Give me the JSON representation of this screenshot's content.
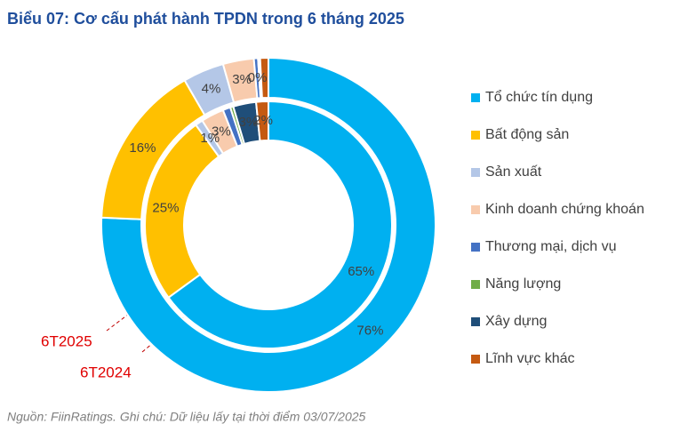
{
  "chart_data": {
    "type": "pie",
    "title": "Biểu 07: Cơ cấu phát hành TPDN trong 6 tháng 2025",
    "source": "Nguồn: FiinRatings. Ghi chú: Dữ liệu lấy tại thời điểm 03/07/2025",
    "categories": [
      "Tổ chức tín dụng",
      "Bất động sản",
      "Sản xuất",
      "Kinh doanh chứng khoán",
      "Thương mại, dịch vụ",
      "Năng lượng",
      "Xây dựng",
      "Lĩnh vực khác"
    ],
    "colors": [
      "#00b0f0",
      "#ffc000",
      "#b4c7e7",
      "#f8cbad",
      "#4472c4",
      "#70ad47",
      "#1f4e79",
      "#c55a11"
    ],
    "series": [
      {
        "name": "6T2025",
        "values": [
          76,
          16,
          4,
          3,
          0.4,
          0.1,
          0.1,
          0.8
        ],
        "value_labels": [
          "76%",
          "16%",
          "4%",
          "3%",
          "0%",
          null,
          null,
          null
        ]
      },
      {
        "name": "6T2024",
        "values": [
          65,
          25,
          1,
          3,
          1,
          0.4,
          3,
          1.6
        ],
        "value_labels": [
          "65%",
          "25%",
          "1%",
          "3%",
          null,
          null,
          "3%",
          "2%"
        ]
      }
    ],
    "legend": "right"
  }
}
